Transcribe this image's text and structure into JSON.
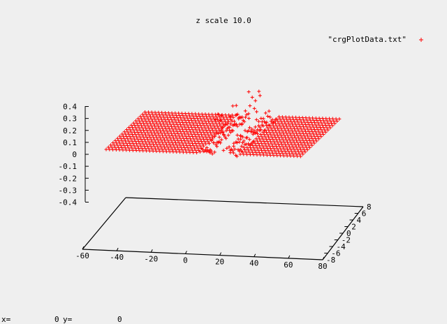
{
  "chart_data": {
    "type": "scatter",
    "title": "z scale 10.0",
    "series": [
      {
        "name": "\"crgPlotData.txt\"",
        "marker": "+",
        "color": "#ff0000"
      }
    ],
    "x_ticks": [
      "-60",
      "-40",
      "-20",
      "0",
      "20",
      "40",
      "60",
      "80"
    ],
    "y_ticks": [
      "-8",
      "-6",
      "-4",
      "-2",
      "0",
      "2",
      "4",
      "6",
      "8"
    ],
    "z_ticks": [
      "0.4",
      "0.3",
      "0.2",
      "0.1",
      "0",
      "-0.1",
      "-0.2",
      "-0.3",
      "-0.4"
    ],
    "xlim": [
      -60,
      80
    ],
    "ylim": [
      -8,
      8
    ],
    "zlim": [
      -0.4,
      0.4
    ],
    "surface": {
      "x_range": [
        -60,
        80
      ],
      "y_range": [
        -8,
        8
      ],
      "z_base": 0,
      "break_x": [
        15,
        25
      ],
      "spike_z_max": 0.4
    }
  },
  "status": {
    "x_label": "x=",
    "x_value": "0",
    "y_label": "y=",
    "y_value": "0"
  }
}
